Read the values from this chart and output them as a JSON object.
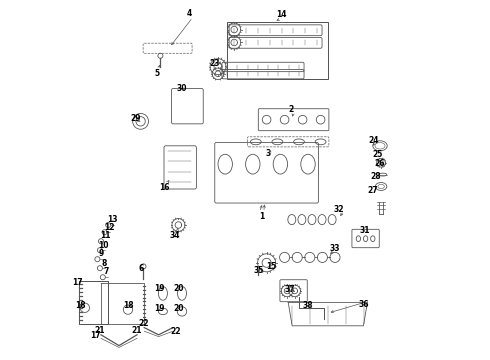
{
  "title": "",
  "background_color": "#ffffff",
  "line_color": "#555555",
  "label_color": "#000000",
  "fig_width": 4.9,
  "fig_height": 3.6,
  "dpi": 100
}
